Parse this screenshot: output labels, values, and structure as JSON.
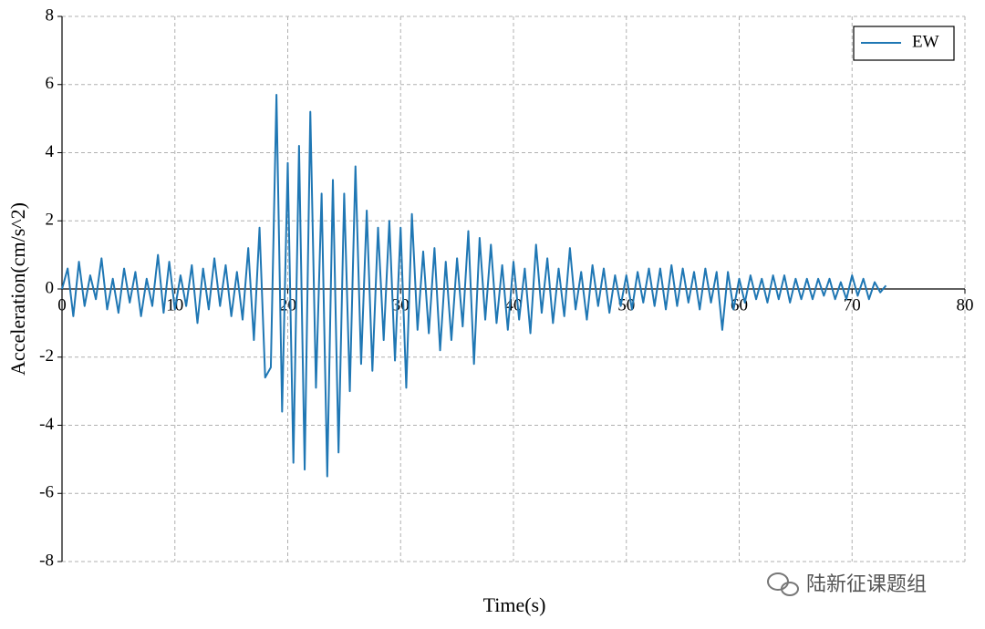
{
  "chart_data": {
    "type": "line",
    "xlabel": "Time(s)",
    "ylabel": "Acceleration(cm/s^2)",
    "watermark": "陆新征课题组",
    "xlim": [
      0,
      80
    ],
    "ylim": [
      -8,
      8
    ],
    "xticks": [
      0,
      10,
      20,
      30,
      40,
      50,
      60,
      70,
      80
    ],
    "yticks": [
      -8,
      -6,
      -4,
      -2,
      0,
      2,
      4,
      6,
      8
    ],
    "grid": true,
    "legend": "upper right",
    "x": [
      0,
      0.5,
      1,
      1.5,
      2,
      2.5,
      3,
      3.5,
      4,
      4.5,
      5,
      5.5,
      6,
      6.5,
      7,
      7.5,
      8,
      8.5,
      9,
      9.5,
      10,
      10.5,
      11,
      11.5,
      12,
      12.5,
      13,
      13.5,
      14,
      14.5,
      15,
      15.5,
      16,
      16.5,
      17,
      17.5,
      18,
      18.5,
      19,
      19.5,
      20,
      20.5,
      21,
      21.5,
      22,
      22.5,
      23,
      23.5,
      24,
      24.5,
      25,
      25.5,
      26,
      26.5,
      27,
      27.5,
      28,
      28.5,
      29,
      29.5,
      30,
      30.5,
      31,
      31.5,
      32,
      32.5,
      33,
      33.5,
      34,
      34.5,
      35,
      35.5,
      36,
      36.5,
      37,
      37.5,
      38,
      38.5,
      39,
      39.5,
      40,
      40.5,
      41,
      41.5,
      42,
      42.5,
      43,
      43.5,
      44,
      44.5,
      45,
      45.5,
      46,
      46.5,
      47,
      47.5,
      48,
      48.5,
      49,
      49.5,
      50,
      50.5,
      51,
      51.5,
      52,
      52.5,
      53,
      53.5,
      54,
      54.5,
      55,
      55.5,
      56,
      56.5,
      57,
      57.5,
      58,
      58.5,
      59,
      59.5,
      60,
      60.5,
      61,
      61.5,
      62,
      62.5,
      63,
      63.5,
      64,
      64.5,
      65,
      65.5,
      66,
      66.5,
      67,
      67.5,
      68,
      68.5,
      69,
      69.5,
      70,
      70.5,
      71,
      71.5,
      72,
      72.5,
      73
    ],
    "series": [
      {
        "name": "EW",
        "color": "#1f77b4",
        "values": [
          0,
          0.6,
          -0.8,
          0.8,
          -0.5,
          0.4,
          -0.3,
          0.9,
          -0.6,
          0.3,
          -0.7,
          0.6,
          -0.4,
          0.5,
          -0.8,
          0.3,
          -0.5,
          1.0,
          -0.7,
          0.8,
          -0.6,
          0.4,
          -0.5,
          0.7,
          -1.0,
          0.6,
          -0.6,
          0.9,
          -0.5,
          0.7,
          -0.8,
          0.5,
          -0.9,
          1.2,
          -1.5,
          1.8,
          -2.6,
          -2.3,
          5.7,
          -3.6,
          3.7,
          -5.1,
          4.2,
          -5.3,
          5.2,
          -2.9,
          2.8,
          -5.5,
          3.2,
          -4.8,
          2.8,
          -3.0,
          3.6,
          -2.2,
          2.3,
          -2.4,
          1.8,
          -1.5,
          2.0,
          -2.1,
          1.8,
          -2.9,
          2.2,
          -1.2,
          1.1,
          -1.3,
          1.2,
          -1.8,
          0.8,
          -1.5,
          0.9,
          -1.1,
          1.7,
          -2.2,
          1.5,
          -0.9,
          1.3,
          -1.0,
          0.7,
          -1.2,
          0.8,
          -0.9,
          0.6,
          -1.3,
          1.3,
          -0.7,
          0.9,
          -1.0,
          0.6,
          -0.8,
          1.2,
          -0.6,
          0.5,
          -0.9,
          0.7,
          -0.5,
          0.6,
          -0.7,
          0.4,
          -0.5,
          0.4,
          -0.6,
          0.5,
          -0.4,
          0.6,
          -0.5,
          0.6,
          -0.6,
          0.7,
          -0.5,
          0.6,
          -0.4,
          0.5,
          -0.6,
          0.6,
          -0.4,
          0.5,
          -1.2,
          0.5,
          -0.6,
          0.3,
          -0.4,
          0.4,
          -0.3,
          0.3,
          -0.4,
          0.4,
          -0.3,
          0.4,
          -0.4,
          0.3,
          -0.3,
          0.3,
          -0.3,
          0.3,
          -0.2,
          0.3,
          -0.3,
          0.2,
          -0.3,
          0.4,
          -0.2,
          0.3,
          -0.3,
          0.2,
          -0.1,
          0.1
        ]
      }
    ]
  }
}
